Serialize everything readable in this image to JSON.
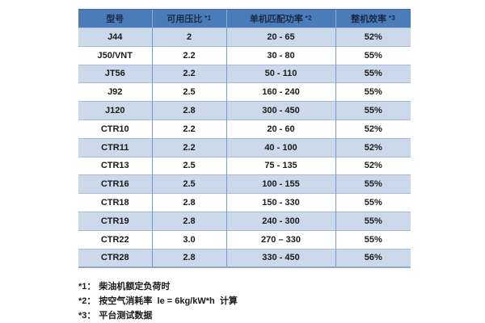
{
  "colors": {
    "header_bg": "#4a7cba",
    "header_text": "#1b2a44",
    "row_alt_bg": "#ccd9eb",
    "row_bg": "#ffffff",
    "border_vertical": "#7b99c8",
    "border_horizontal": "#a6b9d6",
    "header_divider": "#8fa9d0",
    "bottom_border": "#97a8c4",
    "body_text": "#1a1a1a"
  },
  "table": {
    "columns": [
      {
        "label": "型号",
        "note": ""
      },
      {
        "label": "可用压比",
        "note": "*1"
      },
      {
        "label": "单机匹配功率",
        "note": "*2"
      },
      {
        "label": "整机效率",
        "note": "*3"
      }
    ],
    "rows": [
      {
        "model": "J44",
        "pressure_ratio": "2",
        "power_range": "20 - 65",
        "efficiency": "52%"
      },
      {
        "model": "J50/VNT",
        "pressure_ratio": "2.2",
        "power_range": "30 - 80",
        "efficiency": "55%"
      },
      {
        "model": "JT56",
        "pressure_ratio": "2.2",
        "power_range": "50 - 110",
        "efficiency": "55%"
      },
      {
        "model": "J92",
        "pressure_ratio": "2.5",
        "power_range": "160 - 240",
        "efficiency": "55%"
      },
      {
        "model": "J120",
        "pressure_ratio": "2.8",
        "power_range": "300 - 450",
        "efficiency": "55%"
      },
      {
        "model": "CTR10",
        "pressure_ratio": "2.2",
        "power_range": "20 - 60",
        "efficiency": "52%"
      },
      {
        "model": "CTR11",
        "pressure_ratio": "2.2",
        "power_range": "40 - 100",
        "efficiency": "52%"
      },
      {
        "model": "CTR13",
        "pressure_ratio": "2.5",
        "power_range": "75 - 135",
        "efficiency": "52%"
      },
      {
        "model": "CTR16",
        "pressure_ratio": "2.5",
        "power_range": "100 - 155",
        "efficiency": "55%"
      },
      {
        "model": "CTR18",
        "pressure_ratio": "2.8",
        "power_range": "150 - 330",
        "efficiency": "55%"
      },
      {
        "model": "CTR19",
        "pressure_ratio": "2.8",
        "power_range": "240 - 300",
        "efficiency": "55%"
      },
      {
        "model": "CTR22",
        "pressure_ratio": "3.0",
        "power_range": "270 – 330",
        "efficiency": "55%"
      },
      {
        "model": "CTR28",
        "pressure_ratio": "2.8",
        "power_range": "330 - 450",
        "efficiency": "56%"
      }
    ]
  },
  "footnotes": [
    {
      "marker": "*1：",
      "text": "柴油机额定负荷时"
    },
    {
      "marker": "*2：",
      "text": "按空气消耗率  le = 6kg/kW*h  计算"
    },
    {
      "marker": "*3：",
      "text": "平台测试数据"
    }
  ]
}
